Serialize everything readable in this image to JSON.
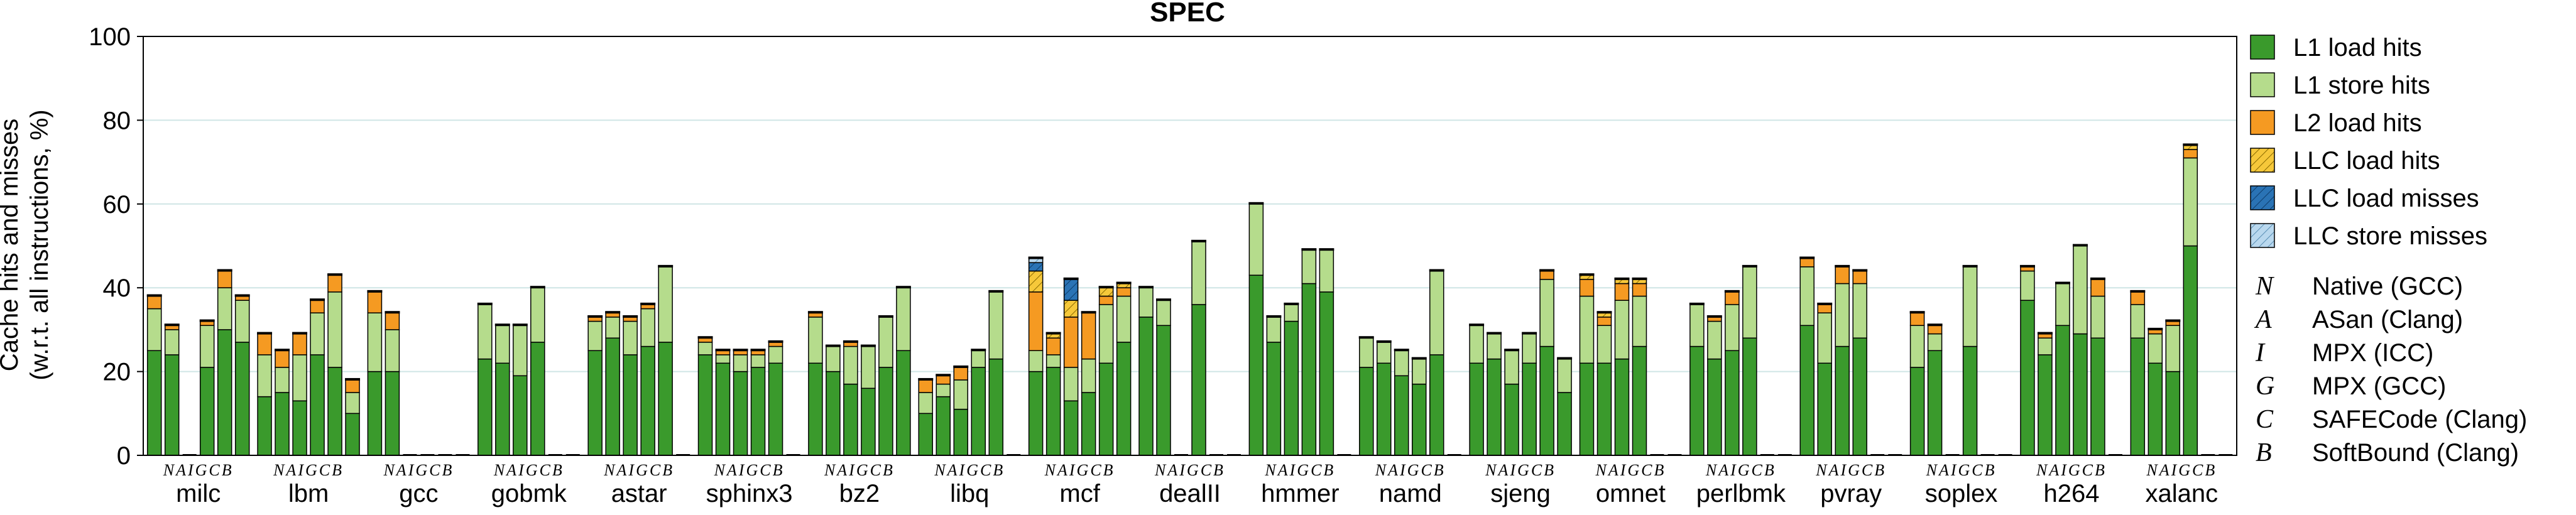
{
  "chart_data": {
    "type": "bar",
    "subtype": "grouped-stacked",
    "title": "SPEC",
    "ylabel_line1": "Cache hits and misses",
    "ylabel_line2": "(w.r.t. all instructions, %)",
    "ylim": [
      0,
      100
    ],
    "yticks": [
      "0",
      "20",
      "40",
      "60",
      "80",
      "100"
    ],
    "grid": "horizontal",
    "legend_position": "right",
    "variants": [
      "N",
      "A",
      "I",
      "G",
      "C",
      "B"
    ],
    "series": [
      {
        "key": "l1_load",
        "name": "L1 load hits",
        "color": "#3a9a2c",
        "pattern": "solid"
      },
      {
        "key": "l1_store",
        "name": "L1 store hits",
        "color": "#b5dc8c",
        "pattern": "solid"
      },
      {
        "key": "l2_load",
        "name": "L2 load hits",
        "color": "#f59a22",
        "pattern": "solid"
      },
      {
        "key": "llc_load_hit",
        "name": "LLC load hits",
        "color": "#f6c83a",
        "pattern": "hatch"
      },
      {
        "key": "llc_load_miss",
        "name": "LLC load misses",
        "color": "#2a73b5",
        "pattern": "hatch"
      },
      {
        "key": "llc_store_miss",
        "name": "LLC store misses",
        "color": "#b9d8ee",
        "pattern": "hatch"
      }
    ],
    "legend_variants": [
      {
        "letter": "N",
        "label": "Native (GCC)"
      },
      {
        "letter": "A",
        "label": "ASan (Clang)"
      },
      {
        "letter": "I",
        "label": "MPX (ICC)"
      },
      {
        "letter": "G",
        "label": "MPX (GCC)"
      },
      {
        "letter": "C",
        "label": "SAFECode (Clang)"
      },
      {
        "letter": "B",
        "label": "SoftBound (Clang)"
      }
    ],
    "benchmarks": [
      {
        "name": "milc",
        "variant_label": "NAIGCB",
        "bars": [
          [
            25,
            10,
            3,
            0,
            0,
            0
          ],
          [
            24,
            6,
            1,
            0,
            0,
            0
          ],
          null,
          [
            21,
            10,
            1,
            0,
            0,
            0
          ],
          [
            30,
            10,
            4,
            0,
            0,
            0
          ],
          [
            27,
            10,
            1,
            0,
            0,
            0
          ]
        ]
      },
      {
        "name": "lbm",
        "variant_label": "NAIGCB",
        "bars": [
          [
            14,
            10,
            5,
            0,
            0,
            0
          ],
          [
            15,
            6,
            4,
            0,
            0,
            0
          ],
          [
            13,
            11,
            5,
            0,
            0,
            0
          ],
          [
            24,
            10,
            3,
            0,
            0,
            0
          ],
          [
            21,
            18,
            4,
            0,
            0,
            0
          ],
          [
            10,
            5,
            3,
            0,
            0,
            0
          ]
        ]
      },
      {
        "name": "gcc",
        "variant_label": "NAIGCB",
        "bars": [
          [
            20,
            14,
            5,
            0,
            0,
            0
          ],
          [
            20,
            10,
            4,
            0,
            0,
            0
          ],
          null,
          null,
          null,
          null
        ]
      },
      {
        "name": "gobmk",
        "variant_label": "NAIGCB",
        "bars": [
          [
            23,
            13,
            0,
            0,
            0,
            0
          ],
          [
            22,
            9,
            0,
            0,
            0,
            0
          ],
          [
            19,
            12,
            0,
            0,
            0,
            0
          ],
          [
            27,
            13,
            0,
            0,
            0,
            0
          ],
          null,
          null
        ]
      },
      {
        "name": "astar",
        "variant_label": "NAIGCB",
        "bars": [
          [
            25,
            7,
            1,
            0,
            0,
            0
          ],
          [
            28,
            5,
            1,
            0,
            0,
            0
          ],
          [
            24,
            8,
            1,
            0,
            0,
            0
          ],
          [
            26,
            9,
            1,
            0,
            0,
            0
          ],
          [
            27,
            18,
            0,
            0,
            0,
            0
          ],
          null
        ]
      },
      {
        "name": "sphinx3",
        "variant_label": "NAIGCB",
        "bars": [
          [
            24,
            3,
            1,
            0,
            0,
            0
          ],
          [
            22,
            2,
            1,
            0,
            0,
            0
          ],
          [
            20,
            4,
            1,
            0,
            0,
            0
          ],
          [
            21,
            3,
            1,
            0,
            0,
            0
          ],
          [
            22,
            4,
            1,
            0,
            0,
            0
          ],
          null
        ]
      },
      {
        "name": "bz2",
        "variant_label": "NAIGCB",
        "bars": [
          [
            22,
            11,
            1,
            0,
            0,
            0
          ],
          [
            20,
            6,
            0,
            0,
            0,
            0
          ],
          [
            17,
            9,
            1,
            0,
            0,
            0
          ],
          [
            16,
            10,
            0,
            0,
            0,
            0
          ],
          [
            21,
            12,
            0,
            0,
            0,
            0
          ],
          [
            25,
            15,
            0,
            0,
            0,
            0
          ]
        ]
      },
      {
        "name": "libq",
        "variant_label": "NAIGCB",
        "bars": [
          [
            10,
            5,
            3,
            0,
            0,
            0
          ],
          [
            14,
            3,
            2,
            0,
            0,
            0
          ],
          [
            11,
            7,
            3,
            0,
            0,
            0
          ],
          [
            21,
            4,
            0,
            0,
            0,
            0
          ],
          [
            23,
            16,
            0,
            0,
            0,
            0
          ],
          null
        ]
      },
      {
        "name": "mcf",
        "variant_label": "NAIGCB",
        "bars": [
          [
            20,
            5,
            14,
            5,
            2,
            1
          ],
          [
            21,
            3,
            4,
            1,
            0,
            0
          ],
          [
            13,
            8,
            12,
            4,
            5,
            0
          ],
          [
            15,
            8,
            11,
            0,
            0,
            0
          ],
          [
            22,
            14,
            2,
            2,
            0,
            0
          ],
          [
            27,
            11,
            2,
            1,
            0,
            0
          ]
        ]
      },
      {
        "name": "dealII",
        "variant_label": "NAIGCB",
        "bars": [
          [
            33,
            7,
            0,
            0,
            0,
            0
          ],
          [
            31,
            6,
            0,
            0,
            0,
            0
          ],
          null,
          [
            36,
            15,
            0,
            0,
            0,
            0
          ],
          null,
          null
        ]
      },
      {
        "name": "hmmer",
        "variant_label": "NAIGCB",
        "bars": [
          [
            43,
            17,
            0,
            0,
            0,
            0
          ],
          [
            27,
            6,
            0,
            0,
            0,
            0
          ],
          [
            32,
            4,
            0,
            0,
            0,
            0
          ],
          [
            41,
            8,
            0,
            0,
            0,
            0
          ],
          [
            39,
            10,
            0,
            0,
            0,
            0
          ],
          null
        ]
      },
      {
        "name": "namd",
        "variant_label": "NAIGCB",
        "bars": [
          [
            21,
            7,
            0,
            0,
            0,
            0
          ],
          [
            22,
            5,
            0,
            0,
            0,
            0
          ],
          [
            19,
            6,
            0,
            0,
            0,
            0
          ],
          [
            17,
            6,
            0,
            0,
            0,
            0
          ],
          [
            24,
            20,
            0,
            0,
            0,
            0
          ],
          null
        ]
      },
      {
        "name": "sjeng",
        "variant_label": "NAIGCB",
        "bars": [
          [
            22,
            9,
            0,
            0,
            0,
            0
          ],
          [
            23,
            6,
            0,
            0,
            0,
            0
          ],
          [
            17,
            8,
            0,
            0,
            0,
            0
          ],
          [
            22,
            7,
            0,
            0,
            0,
            0
          ],
          [
            26,
            16,
            2,
            0,
            0,
            0
          ],
          [
            15,
            8,
            0,
            0,
            0,
            0
          ]
        ]
      },
      {
        "name": "omnet",
        "variant_label": "NAIGCB",
        "bars": [
          [
            22,
            16,
            4,
            1,
            0,
            0
          ],
          [
            22,
            9,
            2,
            1,
            0,
            0
          ],
          [
            23,
            14,
            4,
            1,
            0,
            0
          ],
          [
            26,
            12,
            3,
            1,
            0,
            0
          ],
          null,
          null
        ]
      },
      {
        "name": "perlbmk",
        "variant_label": "NAIGCB",
        "bars": [
          [
            26,
            10,
            0,
            0,
            0,
            0
          ],
          [
            23,
            9,
            1,
            0,
            0,
            0
          ],
          [
            25,
            11,
            3,
            0,
            0,
            0
          ],
          [
            28,
            17,
            0,
            0,
            0,
            0
          ],
          null,
          null
        ]
      },
      {
        "name": "pvray",
        "variant_label": "NAIGCB",
        "bars": [
          [
            31,
            14,
            2,
            0,
            0,
            0
          ],
          [
            22,
            12,
            2,
            0,
            0,
            0
          ],
          [
            26,
            15,
            4,
            0,
            0,
            0
          ],
          [
            28,
            13,
            3,
            0,
            0,
            0
          ],
          null,
          null
        ]
      },
      {
        "name": "soplex",
        "variant_label": "NAIGCB",
        "bars": [
          [
            21,
            10,
            3,
            0,
            0,
            0
          ],
          [
            25,
            4,
            2,
            0,
            0,
            0
          ],
          null,
          [
            26,
            19,
            0,
            0,
            0,
            0
          ],
          null,
          null
        ]
      },
      {
        "name": "h264",
        "variant_label": "NAIGCB",
        "bars": [
          [
            37,
            7,
            1,
            0,
            0,
            0
          ],
          [
            24,
            4,
            1,
            0,
            0,
            0
          ],
          [
            31,
            10,
            0,
            0,
            0,
            0
          ],
          [
            29,
            21,
            0,
            0,
            0,
            0
          ],
          [
            28,
            10,
            4,
            0,
            0,
            0
          ],
          null
        ]
      },
      {
        "name": "xalanc",
        "variant_label": "NAIGCB",
        "bars": [
          [
            28,
            8,
            3,
            0,
            0,
            0
          ],
          [
            22,
            7,
            1,
            0,
            0,
            0
          ],
          [
            20,
            11,
            1,
            0,
            0,
            0
          ],
          [
            50,
            21,
            2,
            1,
            0,
            0
          ],
          null,
          null
        ]
      }
    ]
  }
}
